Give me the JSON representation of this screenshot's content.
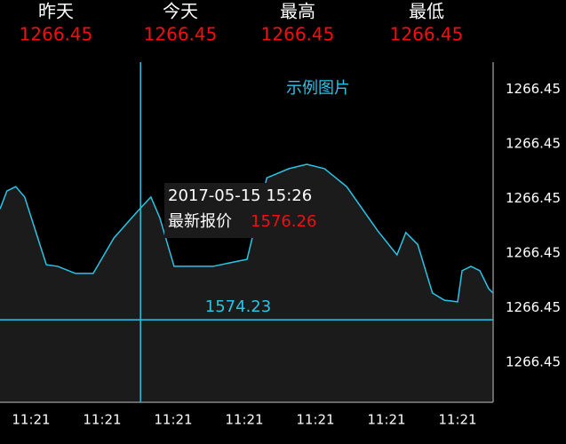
{
  "header": [
    {
      "label": "昨天",
      "value": "1266.45"
    },
    {
      "label": "今天",
      "value": "1266.45"
    },
    {
      "label": "最高",
      "value": "1266.45"
    },
    {
      "label": "最低",
      "value": "1266.45"
    }
  ],
  "chart_data": {
    "type": "line",
    "title": "示例图片",
    "categories": [
      "11:21",
      "11:21",
      "11:21",
      "11:21",
      "11:21",
      "11:21",
      "11:21"
    ],
    "x": [
      0,
      1.4,
      3.2,
      5,
      7.2,
      9.4,
      11.7,
      15.3,
      18.9,
      23.1,
      27.9,
      30.6,
      32.4,
      35.3,
      43.2,
      50.1,
      54.1,
      58.6,
      62.2,
      65.8,
      70.3,
      76.6,
      80.5,
      82.3,
      84.7,
      87.7,
      90.1,
      92.8,
      93.7,
      95.5,
      97.3,
      99.1,
      100
    ],
    "series": [
      {
        "color": "#29c5e6",
        "values": [
          3.81,
          4.14,
          4.22,
          4.03,
          3.41,
          2.79,
          2.76,
          2.63,
          2.63,
          3.28,
          3.77,
          4.03,
          3.65,
          2.76,
          2.76,
          2.89,
          4.38,
          4.55,
          4.63,
          4.55,
          4.22,
          3.41,
          2.97,
          3.38,
          3.16,
          2.27,
          2.14,
          2.11,
          2.68,
          2.76,
          2.68,
          2.35,
          2.27
        ]
      }
    ],
    "xlim": [
      0,
      100
    ],
    "ylim": [
      0.27,
      6.5
    ],
    "yticks": [
      {
        "value": 6,
        "label": "1266.45"
      },
      {
        "value": 5,
        "label": "1266.45"
      },
      {
        "value": 4,
        "label": "1266.45"
      },
      {
        "value": 3,
        "label": "1266.45"
      },
      {
        "value": 2,
        "label": "1266.45"
      },
      {
        "value": 1,
        "label": "1266.45"
      }
    ],
    "crosshair": {
      "x": 28.5,
      "y": 1.78,
      "label": "1574.23"
    },
    "tooltip": {
      "time": "2017-05-15 15:26",
      "label": "最新报价",
      "price": "1576.26"
    }
  }
}
